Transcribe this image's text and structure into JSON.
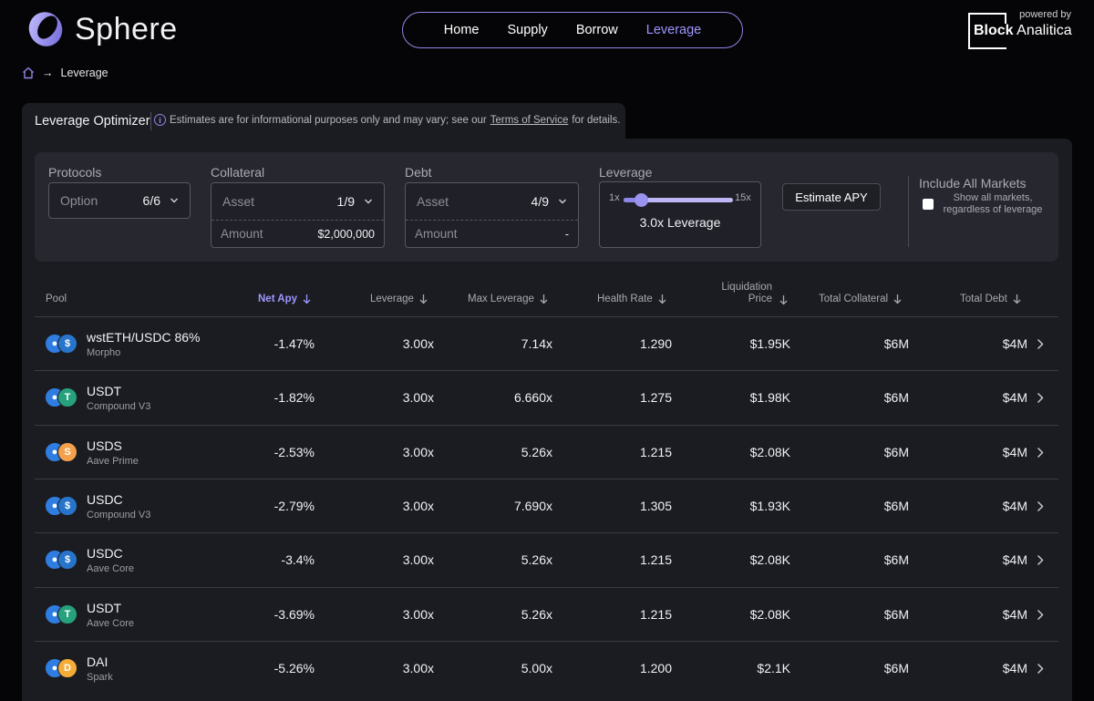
{
  "header": {
    "logo_text": "Sphere",
    "nav": [
      "Home",
      "Supply",
      "Borrow",
      "Leverage"
    ],
    "active_nav": "Leverage",
    "powered_by": "powered by",
    "partner_bold": "Block",
    "partner_rest": "Analitica"
  },
  "breadcrumb": {
    "current": "Leverage",
    "separator": "→"
  },
  "panel": {
    "title": "Leverage Optimizer",
    "note_pre": "Estimates are for informational purposes only and may vary; see our",
    "note_link": "Terms of Service",
    "note_post": "for details."
  },
  "controls": {
    "protocols": {
      "label": "Protocols",
      "placeholder": "Option",
      "value": "6/6"
    },
    "collateral": {
      "label": "Collateral",
      "placeholder": "Asset",
      "value": "1/9",
      "amount_placeholder": "Amount",
      "amount": "$2,000,000"
    },
    "debt": {
      "label": "Debt",
      "placeholder": "Asset",
      "value": "4/9",
      "amount_placeholder": "Amount",
      "amount": "-"
    },
    "leverage": {
      "label": "Leverage",
      "min": "1x",
      "max": "15x",
      "value": "3.0x Leverage",
      "level_fraction": 0.143
    },
    "estimate_button": "Estimate APY",
    "include_all": {
      "title": "Include All Markets",
      "sub": "Show all markets, regardless of leverage"
    }
  },
  "table": {
    "headers": {
      "pool": "Pool",
      "net_apy": "Net Apy",
      "leverage": "Leverage",
      "max_leverage": "Max Leverage",
      "health_rate": "Health Rate",
      "liq_price_1": "Liquidation",
      "liq_price_2": "Price",
      "total_collateral": "Total Collateral",
      "total_debt": "Total Debt"
    },
    "rows": [
      {
        "pool": "wstETH/USDC 86%",
        "protocol": "Morpho",
        "coin2": "usdc",
        "net_apy": "-1.47%",
        "leverage": "3.00x",
        "max_leverage": "7.14x",
        "health": "1.290",
        "liq": "$1.95K",
        "collateral": "$6M",
        "debt": "$4M"
      },
      {
        "pool": "USDT",
        "protocol": "Compound V3",
        "coin2": "usdt",
        "net_apy": "-1.82%",
        "leverage": "3.00x",
        "max_leverage": "6.660x",
        "health": "1.275",
        "liq": "$1.98K",
        "collateral": "$6M",
        "debt": "$4M"
      },
      {
        "pool": "USDS",
        "protocol": "Aave Prime",
        "coin2": "usds",
        "net_apy": "-2.53%",
        "leverage": "3.00x",
        "max_leverage": "5.26x",
        "health": "1.215",
        "liq": "$2.08K",
        "collateral": "$6M",
        "debt": "$4M"
      },
      {
        "pool": "USDC",
        "protocol": "Compound V3",
        "coin2": "usdc",
        "net_apy": "-2.79%",
        "leverage": "3.00x",
        "max_leverage": "7.690x",
        "health": "1.305",
        "liq": "$1.93K",
        "collateral": "$6M",
        "debt": "$4M"
      },
      {
        "pool": "USDC",
        "protocol": "Aave Core",
        "coin2": "usdc",
        "net_apy": "-3.4%",
        "leverage": "3.00x",
        "max_leverage": "5.26x",
        "health": "1.215",
        "liq": "$2.08K",
        "collateral": "$6M",
        "debt": "$4M"
      },
      {
        "pool": "USDT",
        "protocol": "Aave Core",
        "coin2": "usdt",
        "net_apy": "-3.69%",
        "leverage": "3.00x",
        "max_leverage": "5.26x",
        "health": "1.215",
        "liq": "$2.08K",
        "collateral": "$6M",
        "debt": "$4M"
      },
      {
        "pool": "DAI",
        "protocol": "Spark",
        "coin2": "dai",
        "net_apy": "-5.26%",
        "leverage": "3.00x",
        "max_leverage": "5.00x",
        "health": "1.200",
        "liq": "$2.1K",
        "collateral": "$6M",
        "debt": "$4M"
      }
    ]
  },
  "colors": {
    "accent": "#8e86e6",
    "usdc": "#2775ca",
    "usdt": "#26a17b",
    "usds": "#f5a04a",
    "dai": "#f5ac37",
    "eth": "#2f7de1"
  }
}
